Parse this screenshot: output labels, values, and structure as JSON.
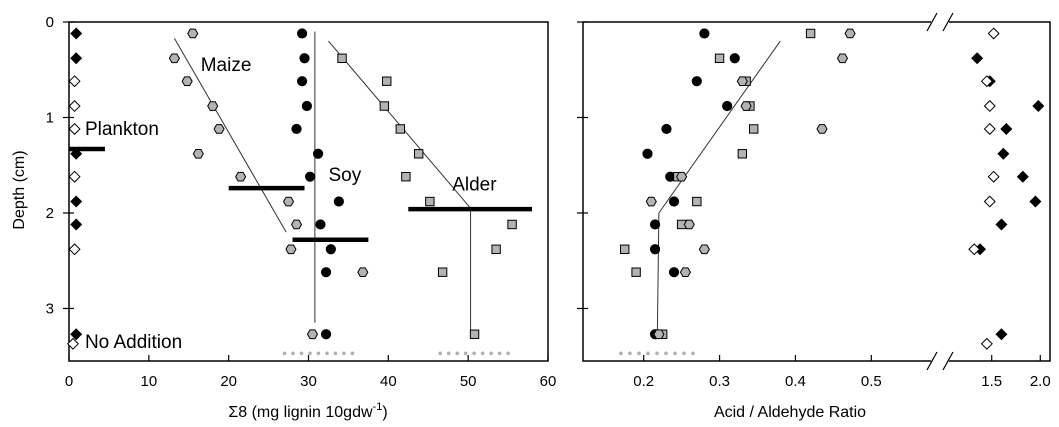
{
  "colors": {
    "black": "#000000",
    "gray": "#b3b3b3",
    "white": "#ffffff",
    "lightdots": "#b0b0b0"
  },
  "chart_data": [
    {
      "type": "scatter",
      "title": "",
      "xlabel": "Σ8 (mg lignin 10gdw",
      "xlabel_sup": "-1",
      "xlabel_close": ")",
      "ylabel": "Depth (cm)",
      "xlim": [
        0,
        60
      ],
      "ylim": [
        3.55,
        0
      ],
      "xticks": [
        0,
        10,
        20,
        30,
        40,
        50,
        60
      ],
      "xtick_labels": [
        "0",
        "10",
        "20",
        "30",
        "40",
        "50",
        "60"
      ],
      "yticks": [
        0,
        1,
        2,
        3
      ],
      "ytick_labels": [
        "0",
        "1",
        "2",
        "3"
      ],
      "annotations": [
        {
          "text": "Plankton",
          "x": 2,
          "y": 1.12
        },
        {
          "text": "Maize",
          "x": 16.5,
          "y": 0.45
        },
        {
          "text": "Soy",
          "x": 32.5,
          "y": 1.6
        },
        {
          "text": "Alder",
          "x": 48,
          "y": 1.7
        },
        {
          "text": "No Addition",
          "x": 2,
          "y": 3.35
        }
      ],
      "series": [
        {
          "marker": "diamond-black",
          "points": [
            [
              0.9,
              0.12
            ],
            [
              0.9,
              0.38
            ],
            [
              0.9,
              1.38
            ],
            [
              0.9,
              1.88
            ],
            [
              0.9,
              2.12
            ],
            [
              0.9,
              3.27
            ]
          ]
        },
        {
          "marker": "diamond-white",
          "points": [
            [
              0.7,
              0.62
            ],
            [
              0.7,
              0.88
            ],
            [
              0.7,
              1.12
            ],
            [
              0.7,
              1.62
            ],
            [
              0.7,
              2.38
            ],
            [
              0.5,
              3.37
            ]
          ]
        },
        {
          "marker": "hexagon-gray",
          "points": [
            [
              15.5,
              0.12
            ],
            [
              13.2,
              0.38
            ],
            [
              14.8,
              0.62
            ],
            [
              18.0,
              0.88
            ],
            [
              18.8,
              1.12
            ],
            [
              16.2,
              1.38
            ],
            [
              21.5,
              1.62
            ],
            [
              27.5,
              1.88
            ],
            [
              28.5,
              2.12
            ],
            [
              27.8,
              2.38
            ],
            [
              36.8,
              2.62
            ],
            [
              30.5,
              3.27
            ]
          ]
        },
        {
          "marker": "circle-black",
          "points": [
            [
              29.2,
              0.12
            ],
            [
              29.5,
              0.38
            ],
            [
              29.2,
              0.62
            ],
            [
              29.8,
              0.88
            ],
            [
              28.5,
              1.12
            ],
            [
              31.2,
              1.38
            ],
            [
              30.2,
              1.62
            ],
            [
              33.8,
              1.88
            ],
            [
              31.5,
              2.12
            ],
            [
              32.8,
              2.38
            ],
            [
              32.2,
              2.62
            ],
            [
              32.2,
              3.27
            ]
          ]
        },
        {
          "marker": "square-gray",
          "points": [
            [
              34.2,
              0.38
            ],
            [
              39.8,
              0.62
            ],
            [
              39.5,
              0.88
            ],
            [
              41.5,
              1.12
            ],
            [
              43.8,
              1.38
            ],
            [
              42.2,
              1.62
            ],
            [
              45.2,
              1.88
            ],
            [
              55.5,
              2.12
            ],
            [
              53.5,
              2.38
            ],
            [
              46.8,
              2.62
            ],
            [
              50.8,
              3.27
            ]
          ]
        }
      ],
      "trend_lines": [
        {
          "from": [
            13.2,
            0.17
          ],
          "to": [
            27.2,
            2.2
          ]
        },
        {
          "from": [
            30.8,
            0.1
          ],
          "to": [
            30.8,
            3.15
          ]
        },
        {
          "from": [
            32.5,
            0.2
          ],
          "to": [
            50.3,
            1.95
          ]
        },
        {
          "from": [
            50.3,
            1.95
          ],
          "to": [
            50.3,
            3.22
          ]
        }
      ],
      "threshold_bars": [
        {
          "x1": 0,
          "x2": 4.5,
          "y": 1.33
        },
        {
          "x1": 20,
          "x2": 29.5,
          "y": 1.74
        },
        {
          "x1": 28,
          "x2": 37.5,
          "y": 2.28
        },
        {
          "x1": 42.5,
          "x2": 58,
          "y": 1.96
        }
      ],
      "dotted_segments": [
        {
          "x1": 27.0,
          "x2": 35.5,
          "y": 3.47
        },
        {
          "x1": 46.5,
          "x2": 55.0,
          "y": 3.47
        }
      ]
    },
    {
      "type": "scatter",
      "title": "",
      "xlabel": "Acid / Aldehyde Ratio",
      "ylabel": "",
      "axis_break": "between 0.5 and 1.5",
      "xlim_left": [
        0.12,
        0.58
      ],
      "xlim_right": [
        1.05,
        2.1
      ],
      "ylim": [
        3.55,
        0
      ],
      "xticks": [
        0.2,
        0.3,
        0.4,
        0.5,
        1.5,
        2.0
      ],
      "xtick_labels": [
        "0.2",
        "0.3",
        "0.4",
        "0.5",
        "1.5",
        "2.0"
      ],
      "yticks": [
        0,
        1,
        2,
        3
      ],
      "series": [
        {
          "marker": "circle-black",
          "points": [
            [
              0.28,
              0.12
            ],
            [
              0.32,
              0.38
            ],
            [
              0.27,
              0.62
            ],
            [
              0.31,
              0.88
            ],
            [
              0.23,
              1.12
            ],
            [
              0.205,
              1.38
            ],
            [
              0.235,
              1.62
            ],
            [
              0.24,
              1.88
            ],
            [
              0.215,
              2.12
            ],
            [
              0.215,
              2.38
            ],
            [
              0.24,
              2.62
            ],
            [
              0.215,
              3.27
            ]
          ]
        },
        {
          "marker": "square-gray",
          "points": [
            [
              0.42,
              0.12
            ],
            [
              0.3,
              0.38
            ],
            [
              0.335,
              0.62
            ],
            [
              0.34,
              0.88
            ],
            [
              0.345,
              1.12
            ],
            [
              0.33,
              1.38
            ],
            [
              0.245,
              1.62
            ],
            [
              0.27,
              1.88
            ],
            [
              0.25,
              2.12
            ],
            [
              0.175,
              2.38
            ],
            [
              0.19,
              2.62
            ],
            [
              0.225,
              3.27
            ]
          ]
        },
        {
          "marker": "hexagon-gray",
          "points": [
            [
              0.472,
              0.12
            ],
            [
              0.462,
              0.38
            ],
            [
              0.33,
              0.62
            ],
            [
              0.335,
              0.88
            ],
            [
              0.435,
              1.12
            ],
            [
              0.25,
              1.62
            ],
            [
              0.21,
              1.88
            ],
            [
              0.26,
              2.12
            ],
            [
              0.28,
              2.38
            ],
            [
              0.255,
              2.62
            ],
            [
              0.22,
              3.27
            ]
          ]
        },
        {
          "marker": "diamond-black",
          "points": [
            [
              1.35,
              0.38
            ],
            [
              1.48,
              0.62
            ],
            [
              1.98,
              0.88
            ],
            [
              1.65,
              1.12
            ],
            [
              1.62,
              1.38
            ],
            [
              1.82,
              1.62
            ],
            [
              1.95,
              1.88
            ],
            [
              1.6,
              2.12
            ],
            [
              1.38,
              2.38
            ],
            [
              1.6,
              3.27
            ]
          ]
        },
        {
          "marker": "diamond-white",
          "points": [
            [
              1.52,
              0.12
            ],
            [
              1.45,
              0.62
            ],
            [
              1.48,
              0.88
            ],
            [
              1.48,
              1.12
            ],
            [
              1.52,
              1.62
            ],
            [
              1.48,
              1.88
            ],
            [
              1.32,
              2.38
            ],
            [
              1.45,
              3.37
            ]
          ]
        }
      ],
      "trend_lines": [
        {
          "from": [
            0.218,
            3.27
          ],
          "to": [
            0.22,
            2.0
          ]
        },
        {
          "from": [
            0.22,
            2.0
          ],
          "to": [
            0.38,
            0.2
          ]
        }
      ],
      "dotted_segments": [
        {
          "x1": 0.17,
          "x2": 0.265,
          "y": 3.47
        }
      ]
    }
  ]
}
